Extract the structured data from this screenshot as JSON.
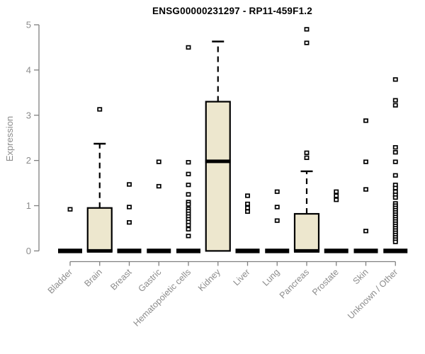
{
  "chart_data": {
    "type": "boxplot",
    "title": "ENSG00000231297 - RP11-459F1.2",
    "ylabel": "Expression",
    "xlabel": "",
    "ylim": [
      0,
      5
    ],
    "yticks": [
      0,
      1,
      2,
      3,
      4,
      5
    ],
    "grid": false,
    "legend": null,
    "marker_style": "open-square",
    "categories": [
      "Bladder",
      "Brain",
      "Breast",
      "Gastric",
      "Hematopoietic cells",
      "Kidney",
      "Liver",
      "Lung",
      "Pancreas",
      "Prostate",
      "Skin",
      "Unknown / Other"
    ],
    "boxes": [
      {
        "category": "Bladder",
        "q1": 0,
        "median": 0,
        "q3": 0,
        "whisker_low": 0,
        "whisker_high": 0,
        "outliers": [
          0.92
        ]
      },
      {
        "category": "Brain",
        "q1": 0,
        "median": 0,
        "q3": 0.95,
        "whisker_low": 0,
        "whisker_high": 2.37,
        "outliers": [
          3.13
        ]
      },
      {
        "category": "Breast",
        "q1": 0,
        "median": 0,
        "q3": 0,
        "whisker_low": 0,
        "whisker_high": 0,
        "outliers": [
          1.47,
          0.97,
          0.63
        ]
      },
      {
        "category": "Gastric",
        "q1": 0,
        "median": 0,
        "q3": 0,
        "whisker_low": 0,
        "whisker_high": 0,
        "outliers": [
          1.97,
          1.43
        ]
      },
      {
        "category": "Hematopoietic cells",
        "q1": 0,
        "median": 0,
        "q3": 0,
        "whisker_low": 0,
        "whisker_high": 0,
        "outliers": [
          4.5,
          1.96,
          1.7,
          1.46,
          1.25,
          1.08,
          1.03,
          0.93,
          0.88,
          0.82,
          0.76,
          0.7,
          0.64,
          0.57,
          0.48,
          0.33
        ]
      },
      {
        "category": "Kidney",
        "q1": 0,
        "median": 1.98,
        "q3": 3.3,
        "whisker_low": 0,
        "whisker_high": 4.63,
        "outliers": []
      },
      {
        "category": "Liver",
        "q1": 0,
        "median": 0,
        "q3": 0,
        "whisker_low": 0,
        "whisker_high": 0,
        "outliers": [
          1.22,
          1.04,
          0.95,
          0.87
        ]
      },
      {
        "category": "Lung",
        "q1": 0,
        "median": 0,
        "q3": 0,
        "whisker_low": 0,
        "whisker_high": 0,
        "outliers": [
          1.31,
          0.97,
          0.67
        ]
      },
      {
        "category": "Pancreas",
        "q1": 0,
        "median": 0,
        "q3": 0.82,
        "whisker_low": 0,
        "whisker_high": 1.76,
        "outliers": [
          4.9,
          4.6,
          2.17,
          2.06
        ]
      },
      {
        "category": "Prostate",
        "q1": 0,
        "median": 0,
        "q3": 0,
        "whisker_low": 0,
        "whisker_high": 0,
        "outliers": [
          1.31,
          1.22,
          1.13
        ]
      },
      {
        "category": "Skin",
        "q1": 0,
        "median": 0,
        "q3": 0,
        "whisker_low": 0,
        "whisker_high": 0,
        "outliers": [
          2.88,
          1.97,
          1.36,
          0.44
        ]
      },
      {
        "category": "Unknown / Other",
        "q1": 0,
        "median": 0,
        "q3": 0,
        "whisker_low": 0,
        "whisker_high": 0,
        "outliers": [
          3.79,
          3.33,
          3.22,
          2.29,
          2.18,
          1.97,
          1.67,
          1.46,
          1.39,
          1.31,
          1.24,
          1.18,
          1.05,
          1.0,
          0.95,
          0.9,
          0.85,
          0.8,
          0.75,
          0.7,
          0.65,
          0.6,
          0.55,
          0.5,
          0.45,
          0.4,
          0.35,
          0.3,
          0.25,
          0.2
        ]
      }
    ],
    "colors": {
      "background": "#ffffff",
      "box_fill": "#EDE7CE",
      "box_border": "#000000",
      "median": "#000000",
      "whisker": "#000000",
      "outlier_stroke": "#000000",
      "outlier_fill": "#ffffff",
      "axis_line": "#808080",
      "tick_label": "#8c8c8c",
      "title": "#000000"
    }
  }
}
